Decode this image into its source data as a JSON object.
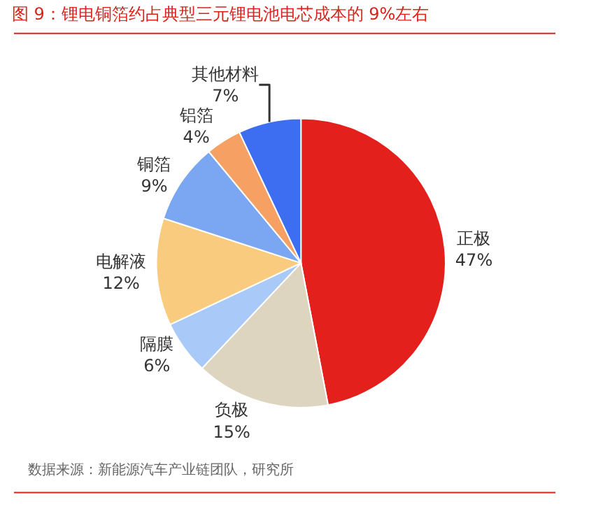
{
  "chart_data": {
    "type": "pie",
    "title": "图 9：锂电铜箔约占典型三元锂电池电芯成本的 9%左右",
    "categories": [
      "正极",
      "负极",
      "隔膜",
      "电解液",
      "铜箔",
      "铝箔",
      "其他材料"
    ],
    "values": [
      47,
      15,
      6,
      12,
      9,
      4,
      7
    ],
    "value_labels": [
      "47%",
      "15%",
      "6%",
      "12%",
      "9%",
      "4%",
      "7%"
    ],
    "colors": [
      "#e3201b",
      "#ddd5c0",
      "#a9c9f9",
      "#f9cb7e",
      "#7ba6f1",
      "#f7a064",
      "#3d6ef2"
    ],
    "annotations": [
      "数据来源：新能源汽车产业链团队，研究所"
    ],
    "legend": false
  }
}
